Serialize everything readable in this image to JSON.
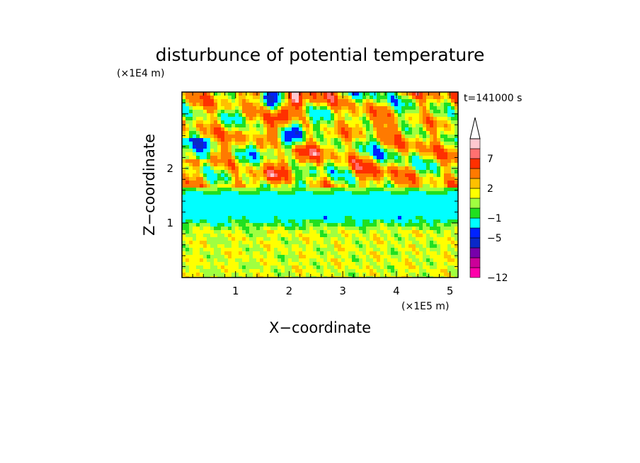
{
  "chart_data": {
    "type": "heatmap",
    "title": "disturbunce of potential temperature",
    "xlabel": "X−coordinate",
    "ylabel": "Z−coordinate",
    "x_unit": "(×1E5 m)",
    "y_unit": "(×1E4 m)",
    "time_label": "t=141000 s",
    "xlim": [
      0,
      5.15
    ],
    "ylim": [
      0,
      3.4
    ],
    "x_ticks": [
      {
        "value": 1,
        "label": "1"
      },
      {
        "value": 2,
        "label": "2"
      },
      {
        "value": 3,
        "label": "3"
      },
      {
        "value": 4,
        "label": "4"
      },
      {
        "value": 5,
        "label": "5"
      }
    ],
    "y_ticks": [
      {
        "value": 1,
        "label": "1"
      },
      {
        "value": 2,
        "label": "2"
      }
    ],
    "colorbar": {
      "extend": "max",
      "levels": [
        -12,
        -10,
        -8,
        -7,
        -5,
        -3,
        -1,
        0,
        1,
        2,
        3,
        5,
        7,
        8,
        10
      ],
      "colors": [
        "#ff00aa",
        "#cc0099",
        "#7700aa",
        "#0a28c8",
        "#0022ff",
        "#00ffff",
        "#20e020",
        "#a0ff40",
        "#ffff00",
        "#ffc000",
        "#ff7a00",
        "#ff3000",
        "#ff7070",
        "#ffc8d0"
      ],
      "tick_labels": [
        {
          "value": -12,
          "label": "−12"
        },
        {
          "value": -5,
          "label": "−5"
        },
        {
          "value": -1,
          "label": "−1"
        },
        {
          "value": 2,
          "label": "2"
        },
        {
          "value": 7,
          "label": "7"
        }
      ]
    }
  }
}
